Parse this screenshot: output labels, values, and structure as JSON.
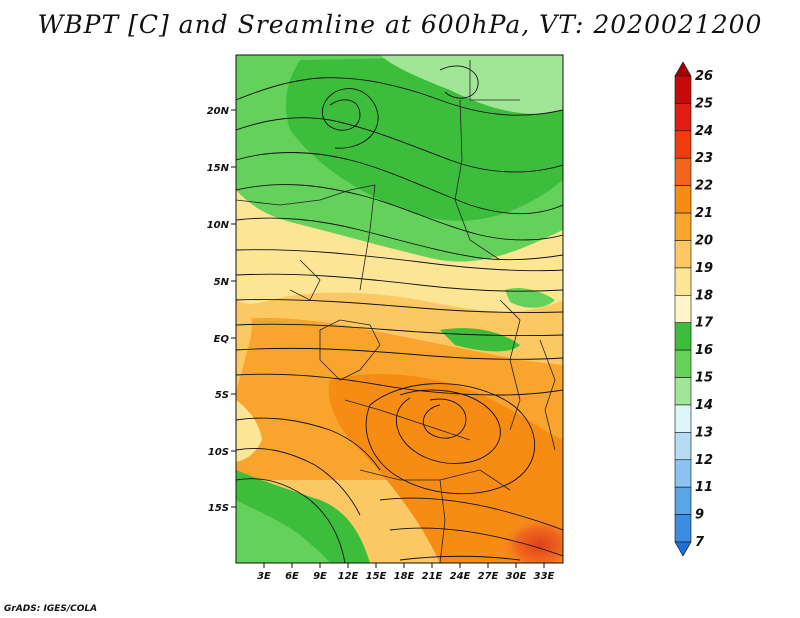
{
  "title": "WBPT [C] and Sreamline at 600hPa, VT: 2020021200",
  "credit": "GrADS: IGES/COLA",
  "map": {
    "lat_ticks": [
      "20N",
      "15N",
      "10N",
      "5N",
      "EQ",
      "5S",
      "10S",
      "15S"
    ],
    "lon_ticks": [
      "3E",
      "6E",
      "9E",
      "12E",
      "15E",
      "18E",
      "21E",
      "24E",
      "27E",
      "30E",
      "33E"
    ]
  },
  "colorbar": {
    "labels": [
      "26",
      "25",
      "24",
      "23",
      "22",
      "21",
      "20",
      "19",
      "18",
      "17",
      "16",
      "15",
      "14",
      "13",
      "12",
      "11",
      "9",
      "7"
    ],
    "colors": [
      "#a50000",
      "#c80a0a",
      "#e11e14",
      "#f03c0f",
      "#f5641e",
      "#f78c14",
      "#f9a52d",
      "#fbc864",
      "#fce696",
      "#fff5c8",
      "#3cbe3c",
      "#64d25a",
      "#a0e696",
      "#dcf5f5",
      "#b4dcf5",
      "#8cc3f0",
      "#5aa5e6",
      "#3c8ce1",
      "#1e6ed7"
    ]
  }
}
